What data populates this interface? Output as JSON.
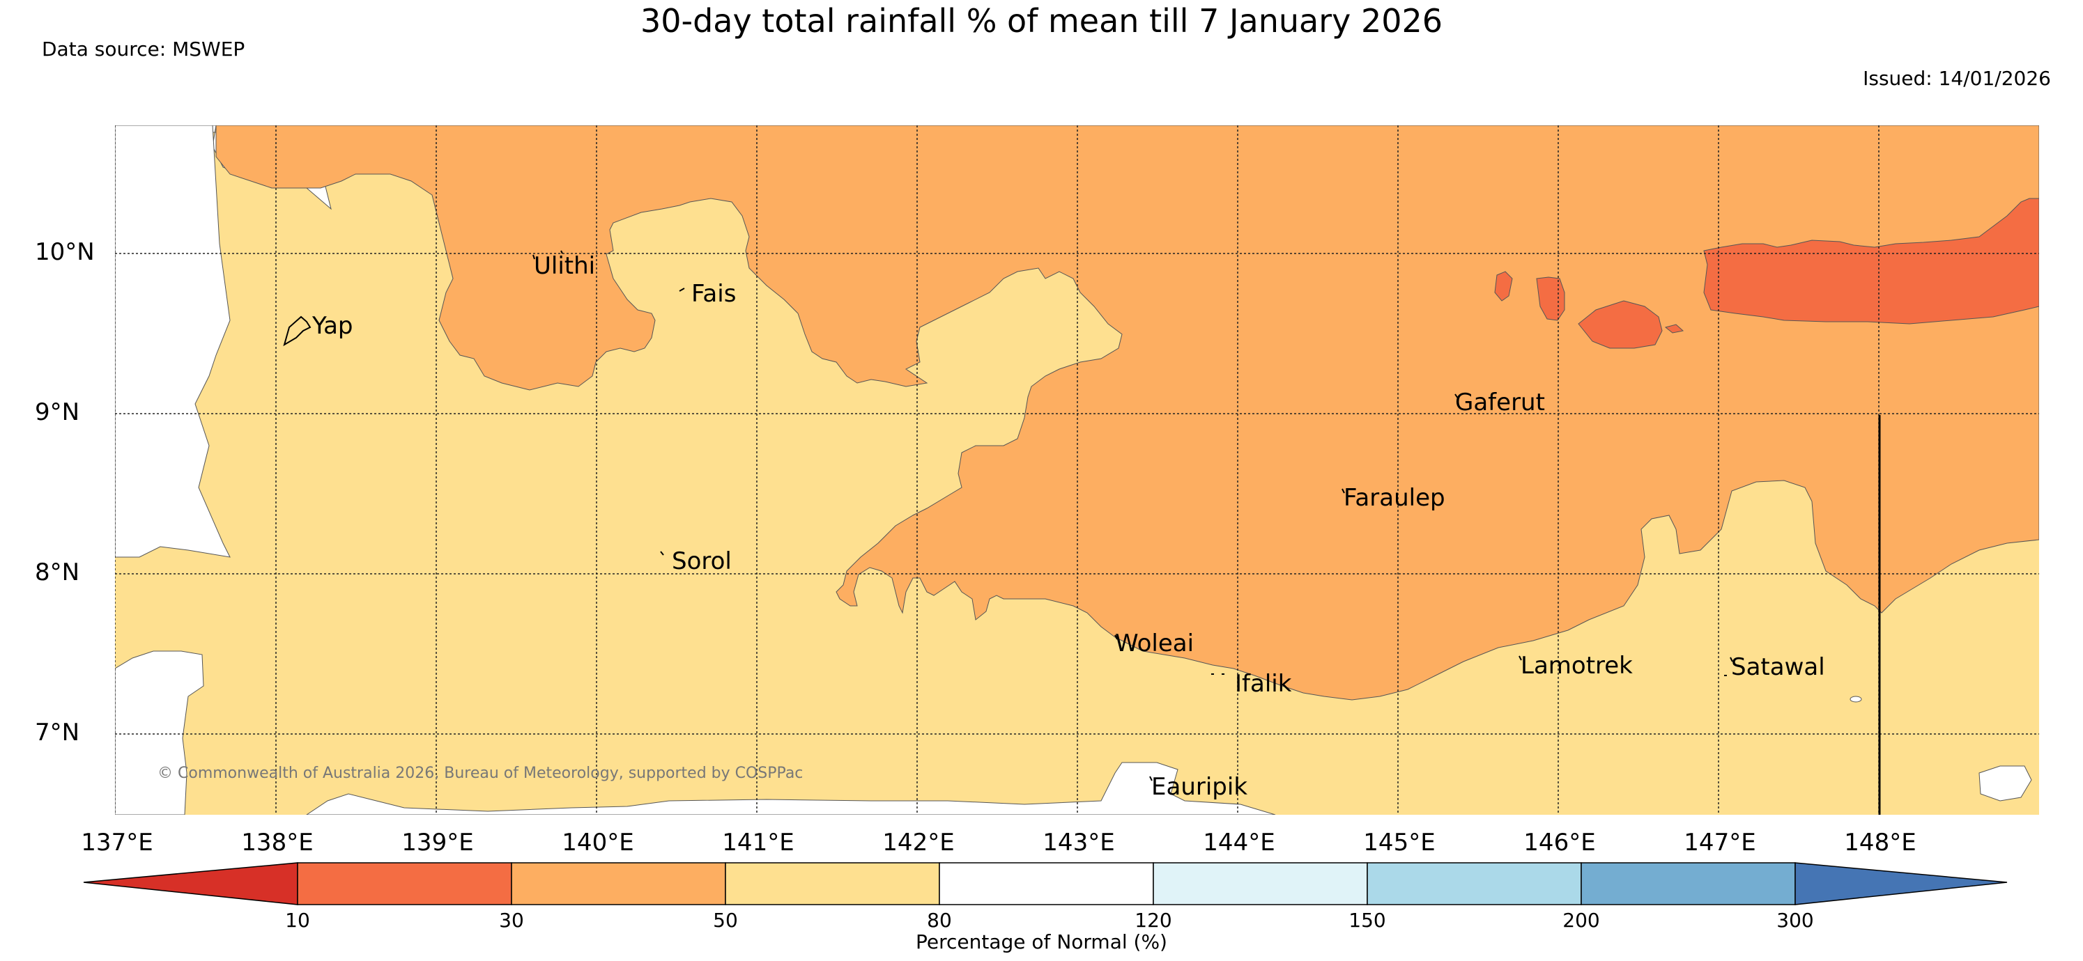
{
  "title": "30-day total rainfall % of mean till 7 January 2026",
  "data_source": "Data source: MSWEP",
  "issued": "Issued: 14/01/2026",
  "copyright": "© Commonwealth of Australia 2026, Bureau of Meteorology, supported by COSPPac",
  "latitude_labels": [
    "10°N",
    "9°N",
    "8°N",
    "7°N"
  ],
  "longitude_labels": [
    "137°E",
    "138°E",
    "139°E",
    "140°E",
    "141°E",
    "142°E",
    "143°E",
    "144°E",
    "145°E",
    "146°E",
    "147°E",
    "148°E"
  ],
  "places": [
    "Ulithi",
    "Fais",
    "Yap",
    "Gaferut",
    "Faraulep",
    "Sorol",
    "Woleai",
    "Ifalik",
    "Lamotrek",
    "Satawal",
    "Eauripik"
  ],
  "colorbar": {
    "title": "Percentage of Normal (%)",
    "ticks": [
      "10",
      "30",
      "50",
      "80",
      "120",
      "150",
      "200",
      "300"
    ],
    "colors": [
      "#d73027",
      "#f46d43",
      "#fdae61",
      "#fee090",
      "#ffffff",
      "#e0f3f8",
      "#abd9e9",
      "#74add1",
      "#4575b4"
    ]
  },
  "map_colors": {
    "rain_50_80": "#fee090",
    "rain_30_50": "#fdae61",
    "rain_10_30": "#f46d43",
    "rain_80_120": "#ffffff"
  }
}
